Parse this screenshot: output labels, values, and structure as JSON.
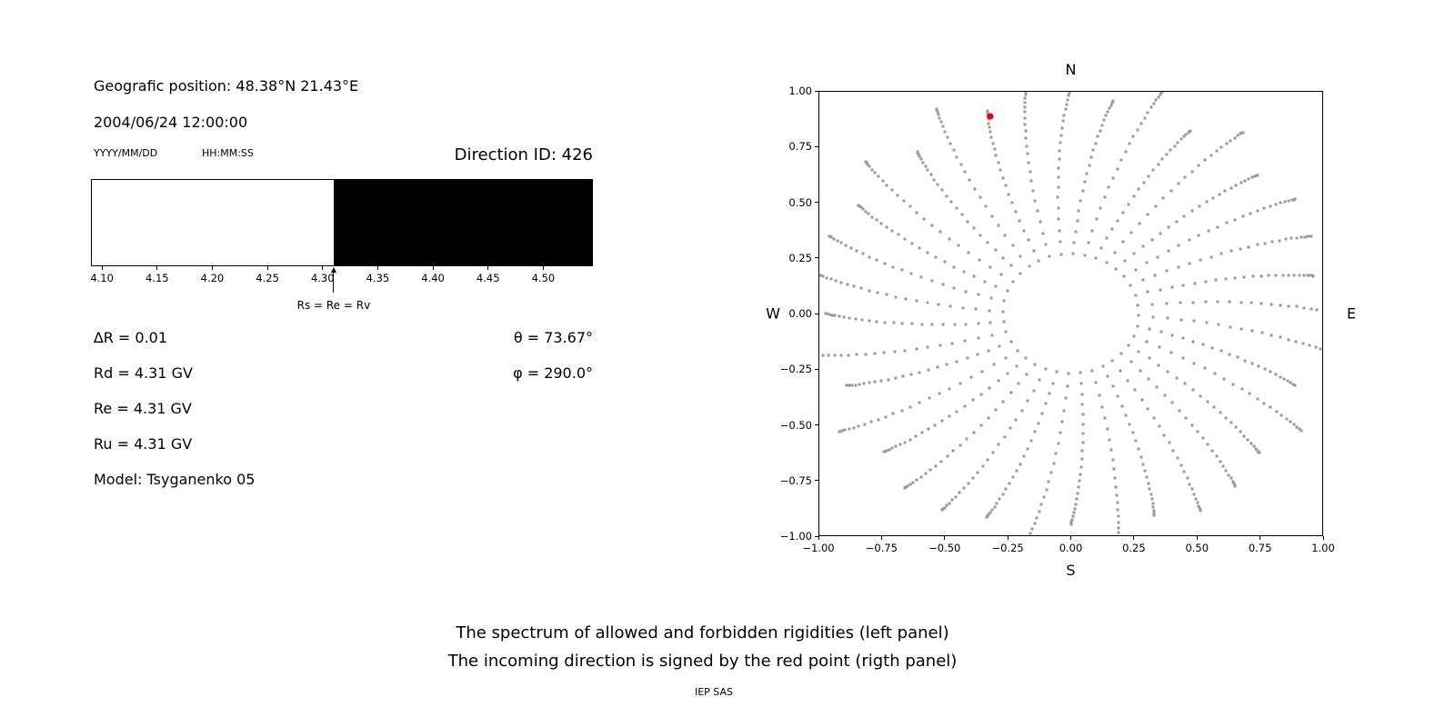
{
  "header": {
    "geo_position": "Geografic position: 48.38°N 21.43°E",
    "datetime": "2004/06/24 12:00:00",
    "date_format_label": "YYYY/MM/DD",
    "time_format_label": "HH:MM:SS",
    "direction_id_label": "Direction ID: 426"
  },
  "spectrum_panel": {
    "marker_label": "Rs = Re = Rv",
    "tick_labels": [
      "4.10",
      "4.15",
      "4.20",
      "4.25",
      "4.30",
      "4.35",
      "4.40",
      "4.45",
      "4.50"
    ],
    "params": [
      "∆R = 0.01",
      "Rd = 4.31 GV",
      "Re = 4.31 GV",
      "Ru = 4.31 GV",
      "Model: Tsyganenko 05"
    ],
    "angles": [
      "θ = 73.67°",
      "φ = 290.0°"
    ]
  },
  "direction_panel": {
    "compass": {
      "north": "N",
      "south": "S",
      "west": "W",
      "east": "E"
    },
    "x_tick_labels": [
      "−1.00",
      "−0.75",
      "−0.50",
      "−0.25",
      "0.00",
      "0.25",
      "0.50",
      "0.75",
      "1.00"
    ],
    "y_tick_labels": [
      "1.00",
      "0.75",
      "0.50",
      "0.25",
      "0.00",
      "−0.25",
      "−0.50",
      "−0.75",
      "−1.00"
    ]
  },
  "captions": {
    "line1": "The spectrum of allowed and forbidden rigidities (left panel)",
    "line2": "The incoming direction is signed by the red point (rigth panel)",
    "credit": "IEP SAS"
  },
  "chart_data": [
    {
      "type": "area",
      "panel": "left-rigidity-spectrum",
      "title": "Direction ID: 426",
      "xlim": [
        4.09,
        4.545
      ],
      "xticks": [
        4.1,
        4.15,
        4.2,
        4.25,
        4.3,
        4.35,
        4.4,
        4.45,
        4.5
      ],
      "regions": [
        {
          "label": "allowed",
          "from": 4.09,
          "to": 4.31,
          "color": "#ffffff"
        },
        {
          "label": "forbidden",
          "from": 4.31,
          "to": 4.545,
          "color": "#000000"
        }
      ],
      "marker": {
        "value": 4.31,
        "label": "Rs = Re = Rv"
      },
      "annotations": {
        "delta_R_GV": 0.01,
        "Rd_GV": 4.31,
        "Re_GV": 4.31,
        "Ru_GV": 4.31,
        "model": "Tsyganenko 05",
        "theta_deg": 73.67,
        "phi_deg": 290.0
      }
    },
    {
      "type": "scatter",
      "panel": "right-incoming-direction",
      "xlim": [
        -1,
        1
      ],
      "ylim": [
        -1,
        1
      ],
      "xticks": [
        -1,
        -0.75,
        -0.5,
        -0.25,
        0,
        0.25,
        0.5,
        0.75,
        1
      ],
      "yticks": [
        1,
        0.75,
        0.5,
        0.25,
        0,
        -0.25,
        -0.5,
        -0.75,
        -1
      ],
      "grid": false,
      "compass": {
        "top": "N",
        "bottom": "S",
        "left": "W",
        "right": "E"
      },
      "gray_trace_spec": {
        "description": "radial dotted traces, denser toward outer edge, empty central circle",
        "num_spokes": 36,
        "angle_start_deg": 0,
        "angle_step_deg": 10,
        "r_inner": 0.27,
        "r_outer": 1.01,
        "r_outer_wobble": 0.06,
        "dots_per_spoke": 24,
        "outward_density_power": 1.7,
        "curvature_deg": 8,
        "dot_color": "#999999",
        "dot_size_px": 3
      },
      "red_point": {
        "x": -0.32,
        "y": 0.89,
        "color": "#e60000",
        "label": "incoming direction"
      }
    }
  ]
}
